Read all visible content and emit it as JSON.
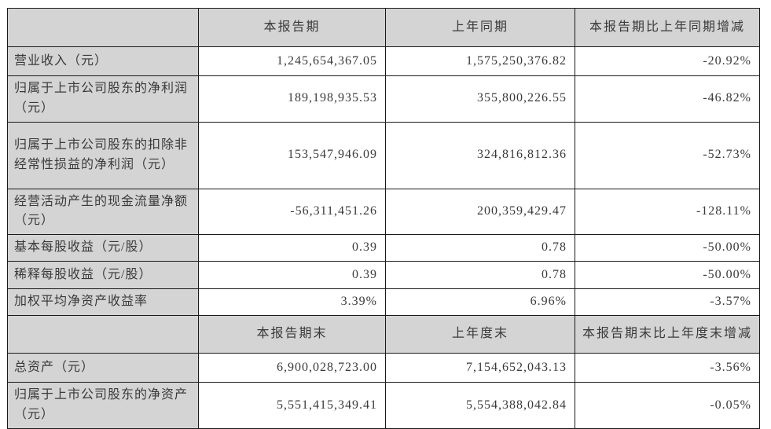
{
  "colors": {
    "header_bg": "#d4d4d4",
    "border": "#1a1a1a",
    "text": "#3a3a3a",
    "cell_bg": "#ffffff"
  },
  "table": {
    "section_period": {
      "headers": {
        "corner": "",
        "current": "本报告期",
        "prior": "上年同期",
        "change": "本报告期比上年同期增减"
      },
      "rows": [
        {
          "label": "营业收入（元）",
          "current": "1,245,654,367.05",
          "prior": "1,575,250,376.82",
          "change": "-20.92%"
        },
        {
          "label": "归属于上市公司股东的净利润（元）",
          "current": "189,198,935.53",
          "prior": "355,800,226.55",
          "change": "-46.82%"
        },
        {
          "label": "归属于上市公司股东的扣除非经常性损益的净利润（元）",
          "current": "153,547,946.09",
          "prior": "324,816,812.36",
          "change": "-52.73%"
        },
        {
          "label": "经营活动产生的现金流量净额（元）",
          "current": "-56,311,451.26",
          "prior": "200,359,429.47",
          "change": "-128.11%"
        },
        {
          "label": "基本每股收益（元/股）",
          "current": "0.39",
          "prior": "0.78",
          "change": "-50.00%"
        },
        {
          "label": "稀释每股收益（元/股）",
          "current": "0.39",
          "prior": "0.78",
          "change": "-50.00%"
        },
        {
          "label": "加权平均净资产收益率",
          "current": "3.39%",
          "prior": "6.96%",
          "change": "-3.57%"
        }
      ]
    },
    "section_yearend": {
      "headers": {
        "corner": "",
        "current": "本报告期末",
        "prior": "上年度末",
        "change": "本报告期末比上年度末增减"
      },
      "rows": [
        {
          "label": "总资产（元）",
          "current": "6,900,028,723.00",
          "prior": "7,154,652,043.13",
          "change": "-3.56%"
        },
        {
          "label": "归属于上市公司股东的净资产（元）",
          "current": "5,551,415,349.41",
          "prior": "5,554,388,042.84",
          "change": "-0.05%"
        }
      ]
    }
  }
}
